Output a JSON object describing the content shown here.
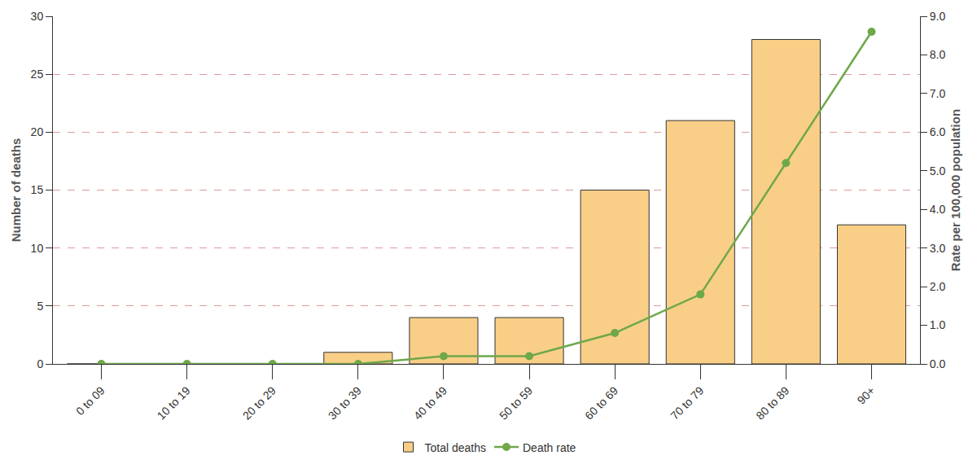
{
  "chart_data": {
    "type": "bar",
    "categories": [
      "0 to 09",
      "10 to 19",
      "20 to 29",
      "30 to 39",
      "40 to 49",
      "50 to 59",
      "60 to 69",
      "70 to 79",
      "80 to 89",
      "90+"
    ],
    "series": [
      {
        "name": "Total deaths",
        "type": "bar",
        "color": "#f9cf87",
        "values": [
          0,
          0,
          0,
          1,
          4,
          4,
          15,
          21,
          28,
          12
        ]
      },
      {
        "name": "Death rate",
        "type": "line",
        "axis": "y2",
        "color": "#6fa84a",
        "marker": "circle",
        "line_style": "solid",
        "values": [
          0,
          0,
          0,
          0,
          0.2,
          0.2,
          0.8,
          1.8,
          5.2,
          8.6
        ]
      }
    ],
    "y_label": "Number of deaths",
    "y2_label": "Rate per 100,000 population",
    "ylim": [
      0,
      30
    ],
    "yticks": [
      0,
      5,
      10,
      15,
      20,
      25,
      30
    ],
    "y2lim": [
      0,
      9
    ],
    "y2ticks": [
      {
        "value": 0,
        "label": "0.0"
      },
      {
        "value": 1,
        "label": "1.0"
      },
      {
        "value": 2,
        "label": "2.0"
      },
      {
        "value": 3,
        "label": "3.0"
      },
      {
        "value": 4,
        "label": "4.0"
      },
      {
        "value": 5,
        "label": "5.0"
      },
      {
        "value": 6,
        "label": "6.0"
      },
      {
        "value": 7,
        "label": "7.0"
      },
      {
        "value": 8,
        "label": "8.0"
      },
      {
        "value": 9,
        "label": "9.0"
      }
    ],
    "grid": true,
    "legend": "bottom"
  }
}
